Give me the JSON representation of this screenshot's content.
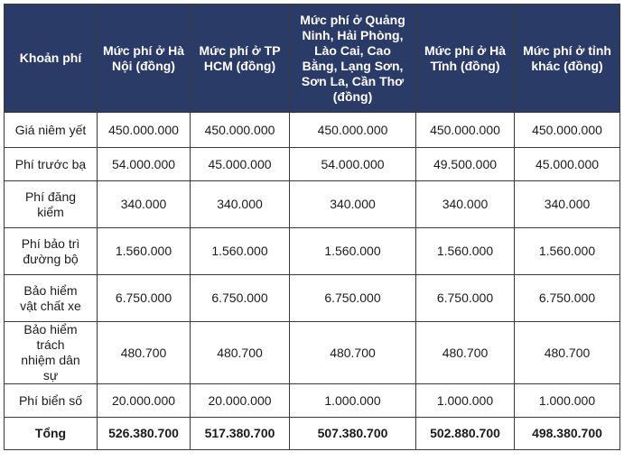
{
  "table": {
    "headers": [
      "Khoản phí",
      "Mức phí ở Hà Nội (đồng)",
      "Mức phí ở TP HCM (đồng)",
      "Mức phí ở Quảng Ninh, Hải Phòng, Lào Cai, Cao Bằng, Lạng Sơn, Sơn La, Cần Thơ (đồng)",
      "Mức phí ở Hà Tĩnh (đồng)",
      "Mức phí ở tỉnh khác (đồng)"
    ],
    "rows": [
      {
        "label": "Giá niêm yết",
        "values": [
          "450.000.000",
          "450.000.000",
          "450.000.000",
          "450.000.000",
          "450.000.000"
        ]
      },
      {
        "label": "Phí trước bạ",
        "values": [
          "54.000.000",
          "45.000.000",
          "54.000.000",
          "49.500.000",
          "45.000.000"
        ]
      },
      {
        "label": "Phí đăng kiểm",
        "values": [
          "340.000",
          "340.000",
          "340.000",
          "340.000",
          "340.000"
        ]
      },
      {
        "label": "Phí bảo trì đường bộ",
        "values": [
          "1.560.000",
          "1.560.000",
          "1.560.000",
          "1.560.000",
          "1.560.000"
        ]
      },
      {
        "label": "Bảo hiểm vật chất xe",
        "values": [
          "6.750.000",
          "6.750.000",
          "6.750.000",
          "6.750.000",
          "6.750.000"
        ]
      },
      {
        "label": "Bảo hiểm trách nhiệm dân sự",
        "values": [
          "480.700",
          "480.700",
          "480.700",
          "480.700",
          "480.700"
        ]
      },
      {
        "label": "Phí biển số",
        "values": [
          "20.000.000",
          "20.000.000",
          "1.000.000",
          "1.000.000",
          "1.000.000"
        ]
      },
      {
        "label": "Tổng",
        "values": [
          "526.380.700",
          "517.380.700",
          "507.380.700",
          "502.880.700",
          "498.380.700"
        ]
      }
    ]
  }
}
